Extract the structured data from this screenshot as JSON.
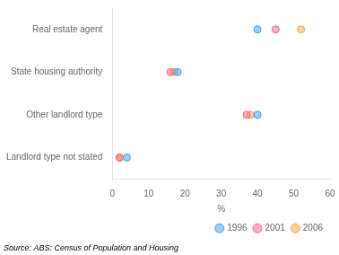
{
  "chart_data": {
    "type": "scatter",
    "categories": [
      "Real estate agent",
      "State housing authority",
      "Other landlord type",
      "Landlord type not stated"
    ],
    "series": [
      {
        "name": "1996",
        "values": [
          40,
          18,
          40,
          4
        ]
      },
      {
        "name": "2001",
        "values": [
          45,
          16,
          37,
          2
        ]
      },
      {
        "name": "2006",
        "values": [
          52,
          17,
          38,
          2
        ]
      }
    ],
    "xlabel": "%",
    "xlim": [
      0,
      60
    ],
    "xticks": [
      0,
      10,
      20,
      30,
      40,
      50,
      60
    ],
    "grid": false,
    "legend": "lower right",
    "annotations": [
      "Source: ABS: Census of Population and Housing"
    ]
  }
}
